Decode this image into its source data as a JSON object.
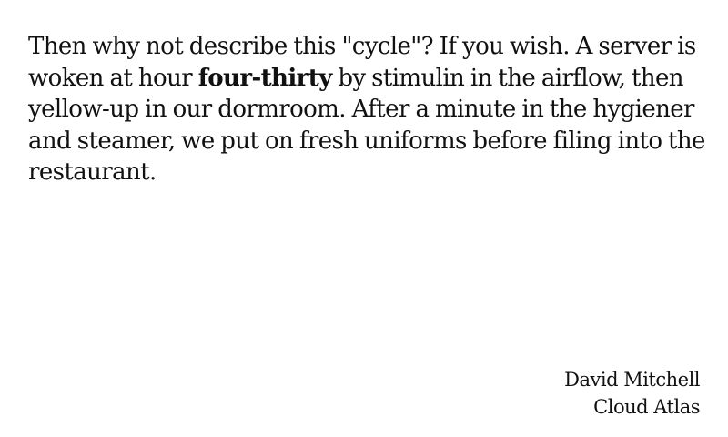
{
  "quote": {
    "before_bold": "Then why not describe this \"cycle\"? If you wish. A server is woken at hour ",
    "bold": "four-thirty",
    "after_bold": " by stimulin in the airflow, then yellow-up in our dormroom. After a minute in the hygiener and steamer, we put on fresh uniforms before filing into the restaurant."
  },
  "attribution": {
    "author": "David Mitchell",
    "work": "Cloud Atlas"
  }
}
